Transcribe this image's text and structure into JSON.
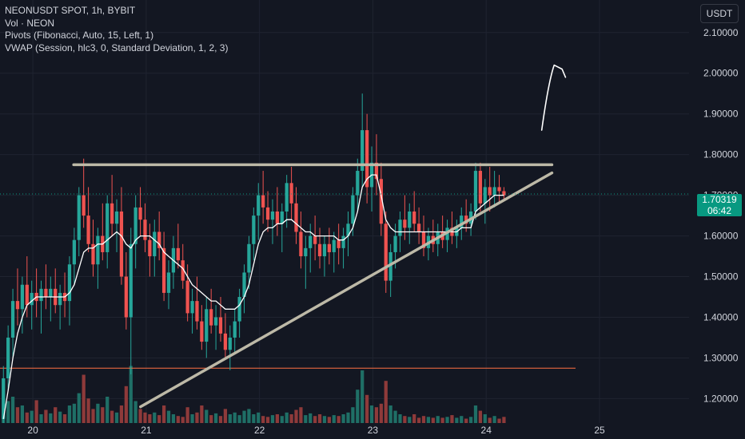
{
  "header": {
    "symbol_line": "NEONUSDT SPOT, 1h, BYBIT",
    "indicators": [
      "Vol · NEON",
      "Pivots (Fibonacci, Auto, 15, Left, 1)",
      "VWAP (Session, hlc3, 0, Standard Deviation, 1, 2, 3)"
    ]
  },
  "currency_button": "USDT",
  "last_price": {
    "value": "1.70319",
    "countdown": "06:42"
  },
  "colors": {
    "background": "#131722",
    "up": "#26a69a",
    "down": "#ef5350",
    "up_volume": "#1f6f66",
    "down_volume": "#8e3a3a",
    "vwap": "#ffffff",
    "trendline": "#bdb9a7",
    "pivot_line": "#ff7043",
    "price_tag": "#089981",
    "grid": "#1f2330",
    "axis_text": "#d1d4dc"
  },
  "chart_data": {
    "type": "candlestick",
    "title": "NEONUSDT SPOT, 1h, BYBIT",
    "ylim": [
      1.14,
      2.18
    ],
    "y_ticks": [
      "2.10000",
      "2.00000",
      "1.90000",
      "1.80000",
      "1.70000",
      "1.60000",
      "1.50000",
      "1.40000",
      "1.30000",
      "1.20000"
    ],
    "x_ticks": [
      {
        "label": "20",
        "day": 20
      },
      {
        "label": "21",
        "day": 21
      },
      {
        "label": "22",
        "day": 22
      },
      {
        "label": "23",
        "day": 23
      },
      {
        "label": "24",
        "day": 24
      },
      {
        "label": "25",
        "day": 25
      }
    ],
    "x_range_days": [
      19.71,
      25.79
    ],
    "first_bar_day": 19.74,
    "bar_hours": 1,
    "grid": true,
    "candles": [
      [
        1.15,
        1.28,
        1.14,
        1.25
      ],
      [
        1.25,
        1.38,
        1.22,
        1.35
      ],
      [
        1.35,
        1.47,
        1.3,
        1.44
      ],
      [
        1.44,
        1.52,
        1.38,
        1.42
      ],
      [
        1.42,
        1.5,
        1.36,
        1.48
      ],
      [
        1.48,
        1.55,
        1.4,
        1.43
      ],
      [
        1.43,
        1.49,
        1.37,
        1.46
      ],
      [
        1.46,
        1.52,
        1.4,
        1.44
      ],
      [
        1.44,
        1.49,
        1.36,
        1.47
      ],
      [
        1.47,
        1.53,
        1.42,
        1.45
      ],
      [
        1.45,
        1.5,
        1.39,
        1.47
      ],
      [
        1.47,
        1.52,
        1.41,
        1.43
      ],
      [
        1.43,
        1.48,
        1.37,
        1.46
      ],
      [
        1.46,
        1.51,
        1.4,
        1.44
      ],
      [
        1.44,
        1.55,
        1.38,
        1.53
      ],
      [
        1.53,
        1.62,
        1.48,
        1.59
      ],
      [
        1.59,
        1.72,
        1.55,
        1.7
      ],
      [
        1.7,
        1.79,
        1.62,
        1.65
      ],
      [
        1.65,
        1.72,
        1.56,
        1.58
      ],
      [
        1.58,
        1.64,
        1.5,
        1.53
      ],
      [
        1.53,
        1.62,
        1.47,
        1.6
      ],
      [
        1.6,
        1.68,
        1.54,
        1.56
      ],
      [
        1.56,
        1.7,
        1.52,
        1.68
      ],
      [
        1.68,
        1.75,
        1.6,
        1.63
      ],
      [
        1.63,
        1.69,
        1.56,
        1.66
      ],
      [
        1.66,
        1.72,
        1.48,
        1.5
      ],
      [
        1.5,
        1.56,
        1.37,
        1.4
      ],
      [
        1.4,
        1.62,
        1.26,
        1.58
      ],
      [
        1.58,
        1.7,
        1.52,
        1.67
      ],
      [
        1.67,
        1.72,
        1.6,
        1.64
      ],
      [
        1.64,
        1.68,
        1.56,
        1.59
      ],
      [
        1.59,
        1.63,
        1.5,
        1.55
      ],
      [
        1.55,
        1.64,
        1.5,
        1.61
      ],
      [
        1.61,
        1.66,
        1.54,
        1.57
      ],
      [
        1.57,
        1.61,
        1.44,
        1.46
      ],
      [
        1.46,
        1.54,
        1.42,
        1.51
      ],
      [
        1.51,
        1.6,
        1.47,
        1.57
      ],
      [
        1.57,
        1.63,
        1.52,
        1.54
      ],
      [
        1.54,
        1.58,
        1.47,
        1.49
      ],
      [
        1.49,
        1.53,
        1.39,
        1.41
      ],
      [
        1.41,
        1.47,
        1.36,
        1.44
      ],
      [
        1.44,
        1.5,
        1.37,
        1.39
      ],
      [
        1.39,
        1.43,
        1.32,
        1.34
      ],
      [
        1.34,
        1.45,
        1.3,
        1.42
      ],
      [
        1.42,
        1.47,
        1.36,
        1.38
      ],
      [
        1.38,
        1.43,
        1.32,
        1.4
      ],
      [
        1.4,
        1.45,
        1.34,
        1.36
      ],
      [
        1.36,
        1.41,
        1.3,
        1.32
      ],
      [
        1.32,
        1.38,
        1.27,
        1.35
      ],
      [
        1.35,
        1.42,
        1.31,
        1.39
      ],
      [
        1.39,
        1.47,
        1.35,
        1.45
      ],
      [
        1.45,
        1.53,
        1.41,
        1.51
      ],
      [
        1.51,
        1.6,
        1.47,
        1.58
      ],
      [
        1.58,
        1.67,
        1.54,
        1.65
      ],
      [
        1.65,
        1.73,
        1.59,
        1.7
      ],
      [
        1.7,
        1.76,
        1.63,
        1.67
      ],
      [
        1.67,
        1.71,
        1.61,
        1.64
      ],
      [
        1.64,
        1.69,
        1.58,
        1.66
      ],
      [
        1.66,
        1.72,
        1.6,
        1.63
      ],
      [
        1.63,
        1.68,
        1.56,
        1.66
      ],
      [
        1.66,
        1.75,
        1.62,
        1.73
      ],
      [
        1.73,
        1.77,
        1.64,
        1.68
      ],
      [
        1.68,
        1.72,
        1.58,
        1.61
      ],
      [
        1.61,
        1.66,
        1.52,
        1.55
      ],
      [
        1.55,
        1.6,
        1.47,
        1.57
      ],
      [
        1.57,
        1.63,
        1.51,
        1.6
      ],
      [
        1.6,
        1.65,
        1.54,
        1.58
      ],
      [
        1.58,
        1.62,
        1.52,
        1.55
      ],
      [
        1.55,
        1.6,
        1.5,
        1.58
      ],
      [
        1.58,
        1.62,
        1.53,
        1.56
      ],
      [
        1.56,
        1.61,
        1.51,
        1.59
      ],
      [
        1.59,
        1.63,
        1.53,
        1.57
      ],
      [
        1.57,
        1.62,
        1.52,
        1.6
      ],
      [
        1.6,
        1.66,
        1.55,
        1.63
      ],
      [
        1.63,
        1.72,
        1.6,
        1.7
      ],
      [
        1.7,
        1.79,
        1.66,
        1.76
      ],
      [
        1.76,
        1.95,
        1.72,
        1.86
      ],
      [
        1.86,
        1.9,
        1.68,
        1.72
      ],
      [
        1.72,
        1.82,
        1.66,
        1.78
      ],
      [
        1.78,
        1.85,
        1.7,
        1.74
      ],
      [
        1.74,
        1.78,
        1.6,
        1.63
      ],
      [
        1.63,
        1.66,
        1.46,
        1.49
      ],
      [
        1.49,
        1.58,
        1.45,
        1.56
      ],
      [
        1.56,
        1.63,
        1.52,
        1.6
      ],
      [
        1.6,
        1.66,
        1.56,
        1.64
      ],
      [
        1.64,
        1.7,
        1.59,
        1.62
      ],
      [
        1.62,
        1.68,
        1.58,
        1.66
      ],
      [
        1.66,
        1.71,
        1.61,
        1.63
      ],
      [
        1.63,
        1.67,
        1.58,
        1.61
      ],
      [
        1.61,
        1.65,
        1.55,
        1.57
      ],
      [
        1.57,
        1.62,
        1.54,
        1.6
      ],
      [
        1.6,
        1.64,
        1.56,
        1.58
      ],
      [
        1.58,
        1.63,
        1.55,
        1.61
      ],
      [
        1.61,
        1.65,
        1.57,
        1.59
      ],
      [
        1.59,
        1.64,
        1.56,
        1.62
      ],
      [
        1.62,
        1.66,
        1.58,
        1.6
      ],
      [
        1.6,
        1.64,
        1.57,
        1.62
      ],
      [
        1.62,
        1.67,
        1.59,
        1.65
      ],
      [
        1.65,
        1.69,
        1.61,
        1.63
      ],
      [
        1.63,
        1.68,
        1.6,
        1.66
      ],
      [
        1.66,
        1.78,
        1.64,
        1.76
      ],
      [
        1.76,
        1.78,
        1.66,
        1.68
      ],
      [
        1.68,
        1.74,
        1.63,
        1.72
      ],
      [
        1.72,
        1.77,
        1.66,
        1.7
      ],
      [
        1.7,
        1.76,
        1.67,
        1.72
      ],
      [
        1.72,
        1.75,
        1.68,
        1.71
      ],
      [
        1.71,
        1.72,
        1.69,
        1.7
      ]
    ],
    "volume": [
      0.08,
      0.25,
      0.3,
      0.18,
      0.2,
      0.12,
      0.14,
      0.26,
      0.1,
      0.15,
      0.11,
      0.18,
      0.13,
      0.1,
      0.2,
      0.22,
      0.34,
      0.55,
      0.28,
      0.16,
      0.22,
      0.18,
      0.3,
      0.14,
      0.12,
      0.2,
      0.42,
      0.65,
      0.25,
      0.16,
      0.12,
      0.1,
      0.12,
      0.09,
      0.2,
      0.14,
      0.1,
      0.08,
      0.07,
      0.18,
      0.1,
      0.12,
      0.2,
      0.15,
      0.09,
      0.11,
      0.08,
      0.16,
      0.1,
      0.12,
      0.09,
      0.14,
      0.16,
      0.1,
      0.12,
      0.08,
      0.07,
      0.09,
      0.1,
      0.08,
      0.12,
      0.1,
      0.15,
      0.18,
      0.09,
      0.11,
      0.08,
      0.1,
      0.08,
      0.07,
      0.09,
      0.08,
      0.1,
      0.12,
      0.18,
      0.38,
      0.6,
      0.32,
      0.2,
      0.18,
      0.22,
      0.48,
      0.2,
      0.14,
      0.1,
      0.08,
      0.07,
      0.1,
      0.06,
      0.08,
      0.07,
      0.06,
      0.08,
      0.06,
      0.07,
      0.09,
      0.06,
      0.08,
      0.05,
      0.07,
      0.2,
      0.14,
      0.1,
      0.06,
      0.08,
      0.05,
      0.07
    ],
    "vwap": [
      1.15,
      1.22,
      1.3,
      1.36,
      1.4,
      1.43,
      1.44,
      1.45,
      1.45,
      1.45,
      1.45,
      1.45,
      1.45,
      1.45,
      1.46,
      1.48,
      1.52,
      1.56,
      1.57,
      1.57,
      1.58,
      1.58,
      1.59,
      1.6,
      1.61,
      1.6,
      1.58,
      1.57,
      1.59,
      1.6,
      1.6,
      1.6,
      1.59,
      1.58,
      1.56,
      1.55,
      1.54,
      1.53,
      1.52,
      1.5,
      1.48,
      1.47,
      1.46,
      1.45,
      1.44,
      1.44,
      1.43,
      1.42,
      1.42,
      1.42,
      1.43,
      1.45,
      1.48,
      1.53,
      1.58,
      1.61,
      1.62,
      1.62,
      1.63,
      1.63,
      1.64,
      1.64,
      1.63,
      1.62,
      1.61,
      1.61,
      1.6,
      1.6,
      1.6,
      1.6,
      1.6,
      1.59,
      1.59,
      1.6,
      1.62,
      1.66,
      1.72,
      1.74,
      1.75,
      1.75,
      1.7,
      1.64,
      1.62,
      1.61,
      1.61,
      1.61,
      1.61,
      1.61,
      1.61,
      1.61,
      1.61,
      1.61,
      1.61,
      1.61,
      1.61,
      1.61,
      1.61,
      1.62,
      1.62,
      1.62,
      1.66,
      1.67,
      1.68,
      1.69,
      1.7,
      1.7,
      1.7
    ],
    "horizontal_line": {
      "y": 1.275
    },
    "resistance_line": {
      "y": 1.775,
      "from_day": 20.36,
      "to_day": 24.58
    },
    "support_line": {
      "from": [
        20.95,
        1.18
      ],
      "to": [
        24.58,
        1.755
      ]
    },
    "arrow_annotation": {
      "points": [
        [
          24.49,
          1.86
        ],
        [
          24.55,
          1.98
        ],
        [
          24.6,
          2.02
        ],
        [
          24.67,
          2.01
        ],
        [
          24.7,
          1.99
        ]
      ]
    }
  }
}
